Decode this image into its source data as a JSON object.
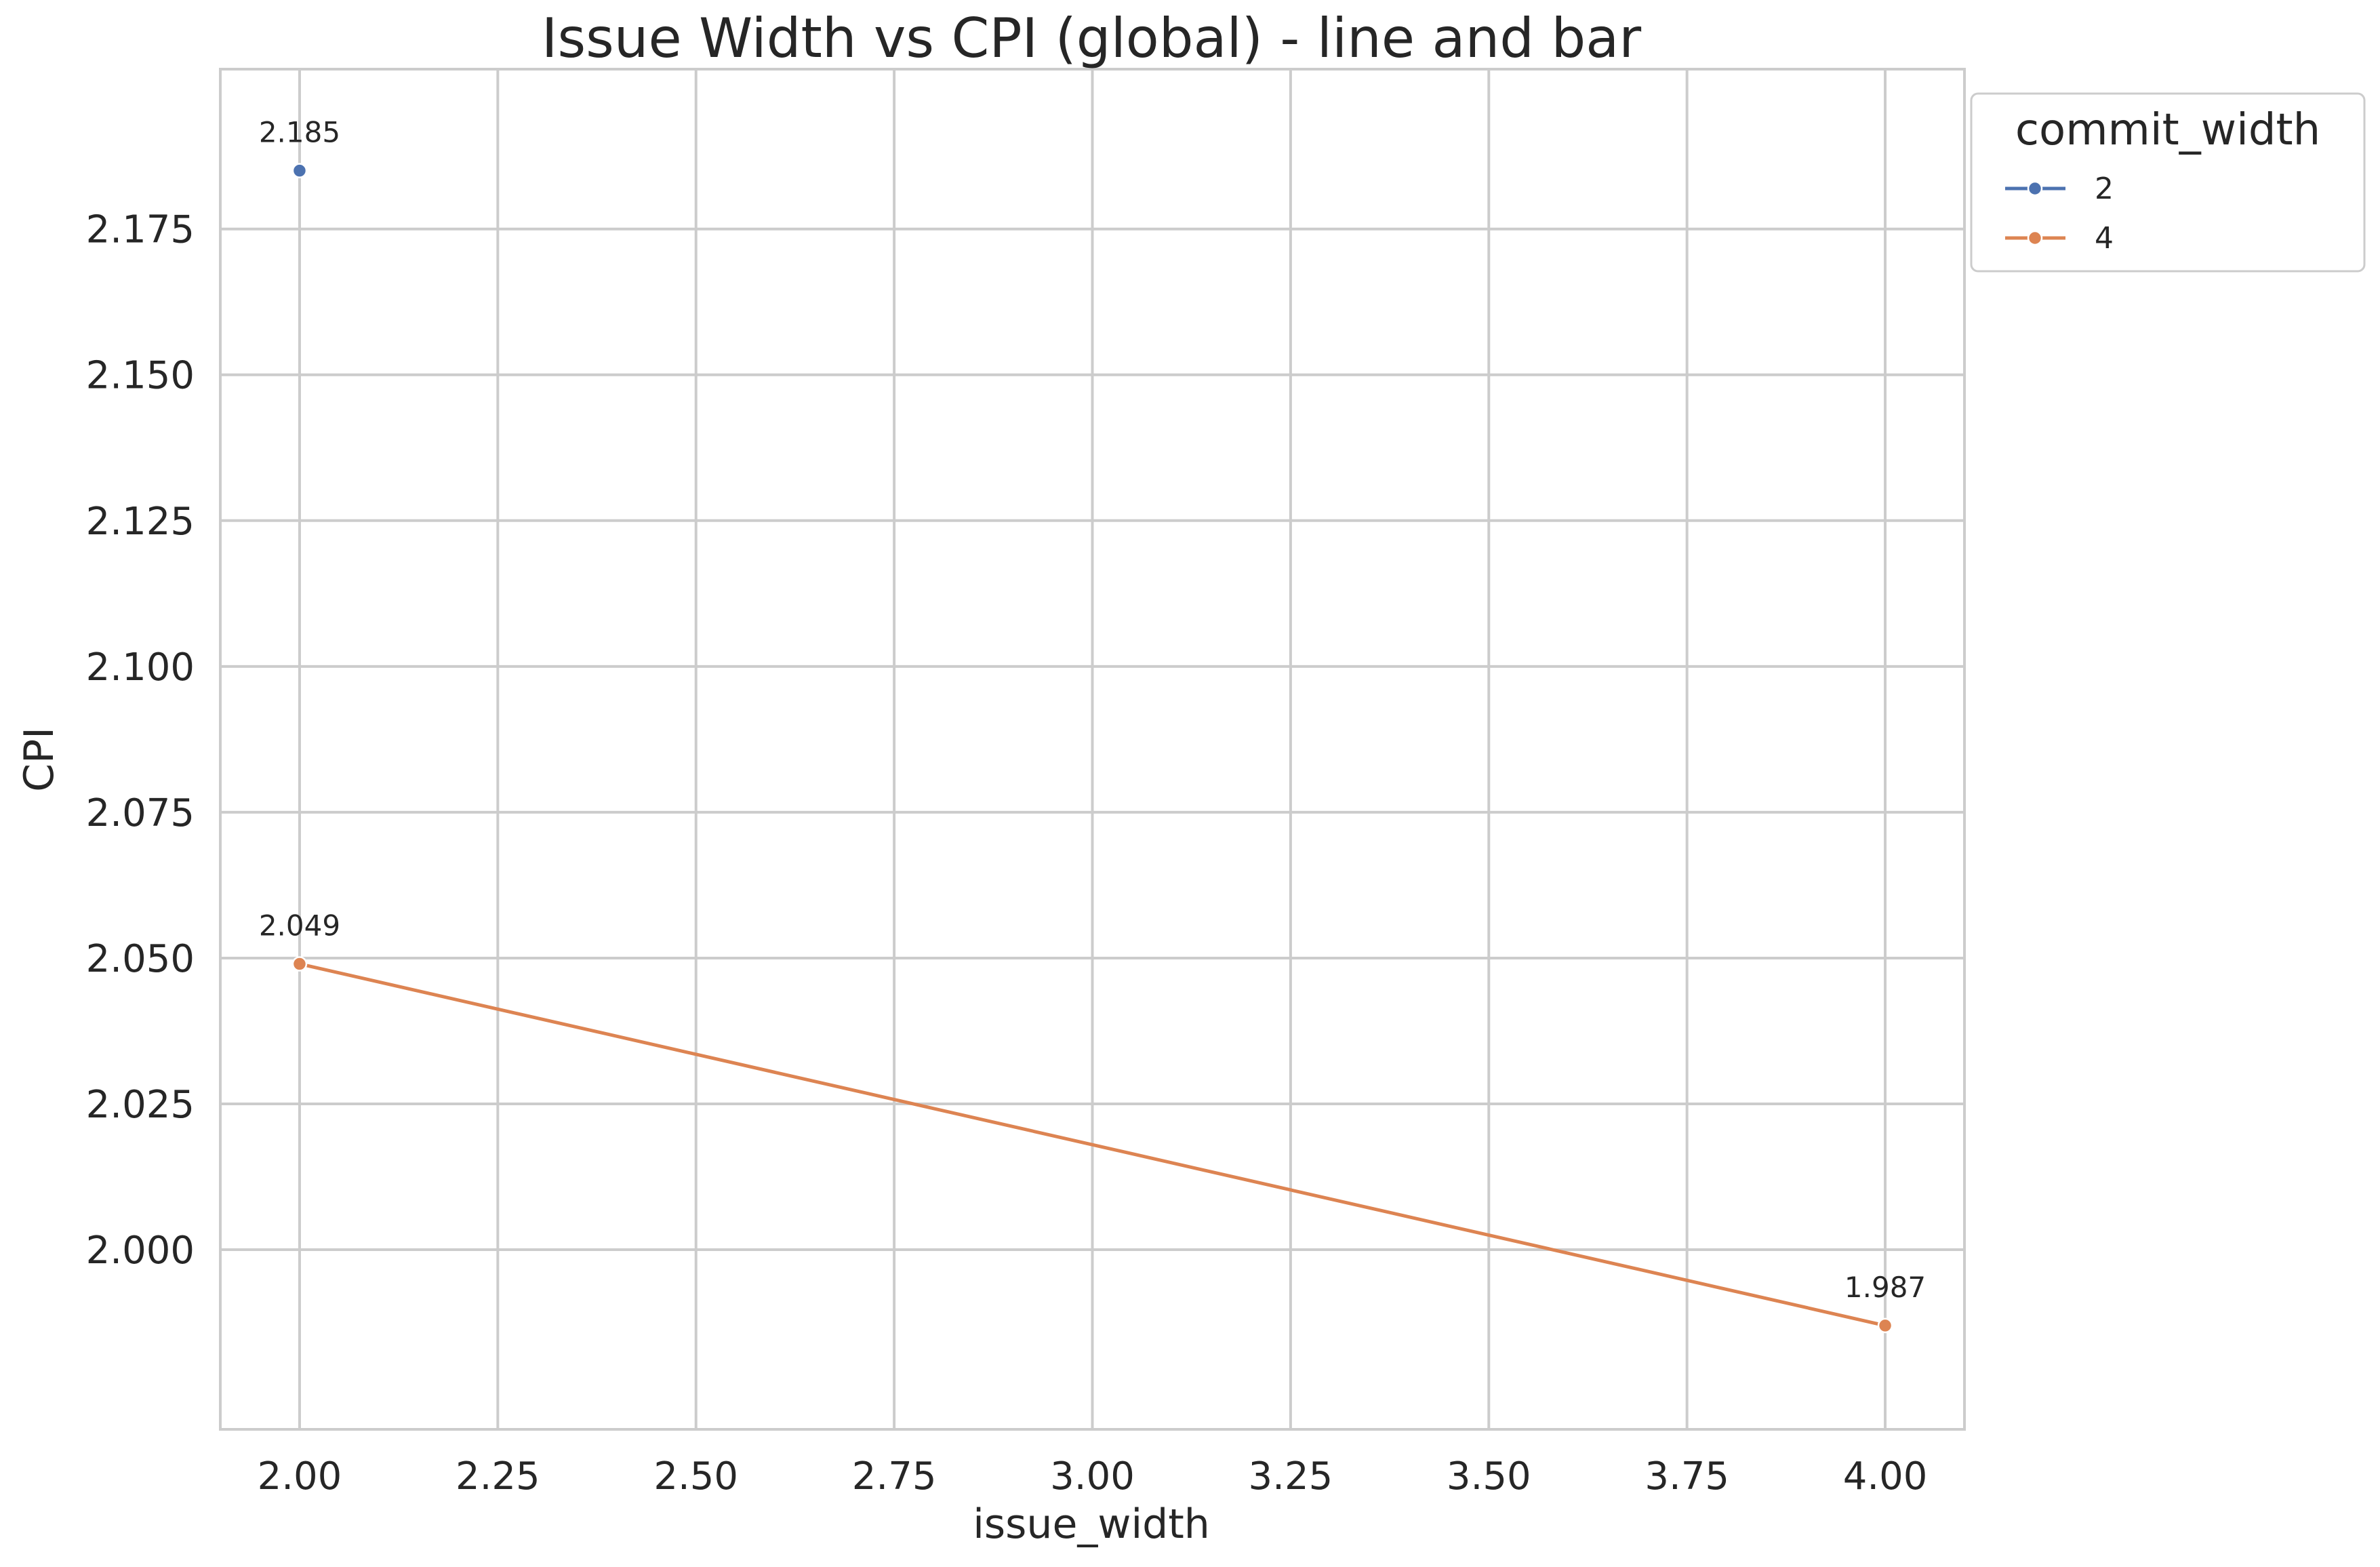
{
  "chart_data": {
    "type": "line",
    "title": "Issue Width vs CPI (global) - line and bar",
    "xlabel": "issue_width",
    "ylabel": "CPI",
    "xlim": [
      1.9,
      4.1
    ],
    "ylim": [
      1.9692,
      2.2024
    ],
    "x_ticks": [
      2.0,
      2.25,
      2.5,
      2.75,
      3.0,
      3.25,
      3.5,
      3.75,
      4.0
    ],
    "x_tick_labels": [
      "2.00",
      "2.25",
      "2.50",
      "2.75",
      "3.00",
      "3.25",
      "3.50",
      "3.75",
      "4.00"
    ],
    "y_ticks": [
      2.0,
      2.025,
      2.05,
      2.075,
      2.1,
      2.125,
      2.15,
      2.175
    ],
    "y_tick_labels": [
      "2.000",
      "2.025",
      "2.050",
      "2.075",
      "2.100",
      "2.125",
      "2.150",
      "2.175"
    ],
    "grid": true,
    "legend": {
      "title": "commit_width",
      "placement": "outside-top-right"
    },
    "series": [
      {
        "name": "2",
        "color": "#4c72b0",
        "points": [
          {
            "x": 2.0,
            "y": 2.185,
            "label": "2.185"
          }
        ]
      },
      {
        "name": "4",
        "color": "#dd8452",
        "points": [
          {
            "x": 2.0,
            "y": 2.049,
            "label": "2.049"
          },
          {
            "x": 4.0,
            "y": 1.987,
            "label": "1.987"
          }
        ]
      }
    ]
  }
}
